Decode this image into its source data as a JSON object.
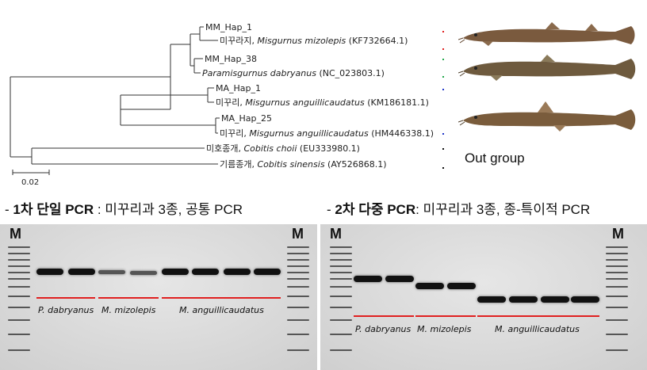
{
  "tree": {
    "leaves": [
      {
        "hap": "MM_Hap_1",
        "kor": "",
        "sci": "",
        "acc": ""
      },
      {
        "hap": "",
        "kor": "미꾸라지,",
        "sci": "Misgurnus mizolepis",
        "acc": "(KF732664.1)"
      },
      {
        "hap": "MM_Hap_38",
        "kor": "",
        "sci": "",
        "acc": ""
      },
      {
        "hap": "",
        "kor": "",
        "sci": "Paramisgurnus dabryanus",
        "acc": "(NC_023803.1)"
      },
      {
        "hap": "MA_Hap_1",
        "kor": "",
        "sci": "",
        "acc": ""
      },
      {
        "hap": "",
        "kor": "미꾸리,",
        "sci": "Misgurnus anguillicaudatus",
        "acc": "(KM186181.1)"
      },
      {
        "hap": "MA_Hap_25",
        "kor": "",
        "sci": "",
        "acc": ""
      },
      {
        "hap": "",
        "kor": "미꾸리,",
        "sci": "Misgurnus anguillicaudatus",
        "acc": "(HM446338.1)"
      },
      {
        "hap": "",
        "kor": "미호종개,",
        "sci": "Cobitis choii",
        "acc": "(EU333980.1)"
      },
      {
        "hap": "",
        "kor": "기름종개,",
        "sci": "Cobitis sinensis",
        "acc": "(AY526868.1)"
      }
    ],
    "scale_label": "0.02",
    "bracket_colors": [
      "#e02020",
      "#22a84a",
      "#1f35c8",
      "#111111"
    ],
    "outgroup_label": "Out group"
  },
  "fish_icons": [
    "loach-fish-icon",
    "loach-fish-icon",
    "loach-fish-icon"
  ],
  "gel_left": {
    "title_prefix": "- ",
    "title_bold": "1차 단일 PCR",
    "title_rest": " : 미꾸리과 3종, 공통 PCR",
    "marker_left": "M",
    "marker_right": "M",
    "species": [
      "P. dabryanus",
      "M. mizolepis",
      "M. anguillicaudatus"
    ]
  },
  "gel_right": {
    "title_prefix": "- ",
    "title_bold": "2차 다중 PCR",
    "title_rest": ": 미꾸리과 3종, 종-특이적 PCR",
    "marker_left": "M",
    "marker_right": "M",
    "species": [
      "P. dabryanus",
      "M. mizolepis",
      "M. anguillicaudatus"
    ]
  },
  "colors": {
    "red_line": "#e02020",
    "gel_background": "#dcdcdc"
  }
}
